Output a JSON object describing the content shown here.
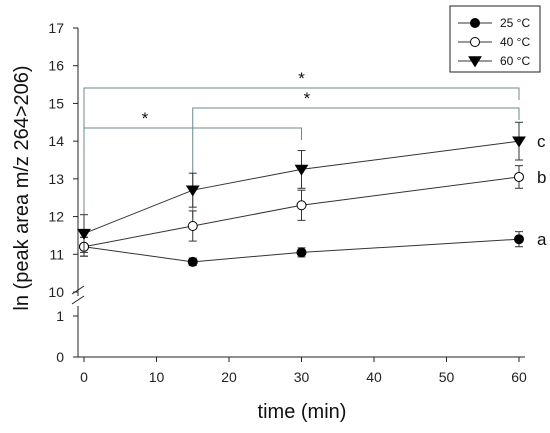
{
  "chart_data": {
    "type": "line",
    "title": "",
    "xlabel": "time (min)",
    "ylabel": "ln (peak area m/z 264>206)",
    "x": [
      0,
      15,
      30,
      60
    ],
    "xlim": [
      0,
      60
    ],
    "xticks": [
      "0",
      "10",
      "20",
      "30",
      "40",
      "50",
      "60"
    ],
    "ylim": [
      10,
      17
    ],
    "yticks": [
      "10",
      "11",
      "12",
      "13",
      "14",
      "15",
      "16",
      "17"
    ],
    "y_break": {
      "lower_ticks": [
        "0",
        "1"
      ]
    },
    "grid": false,
    "legend_position": "top-right",
    "series": [
      {
        "name": "25 °C",
        "marker": "filled-circle",
        "color": "#000000",
        "values": [
          11.2,
          10.8,
          11.05,
          11.4
        ],
        "errors": [
          0.25,
          0.1,
          0.12,
          0.2
        ],
        "end_label": "a"
      },
      {
        "name": "40 °C",
        "marker": "open-circle",
        "color": "#000000",
        "values": [
          11.2,
          11.75,
          12.3,
          13.05
        ],
        "errors": [
          0.25,
          0.4,
          0.4,
          0.3
        ],
        "end_label": "b"
      },
      {
        "name": "60 °C",
        "marker": "filled-triangle-down",
        "color": "#000000",
        "values": [
          11.55,
          12.7,
          13.25,
          14.0
        ],
        "errors": [
          0.5,
          0.45,
          0.5,
          0.5
        ],
        "end_label": "c"
      }
    ],
    "significance_brackets": [
      {
        "label": "*",
        "from_x": 0,
        "to_x": 60
      },
      {
        "label": "*",
        "from_x": 15,
        "to_x": 60
      },
      {
        "label": "*",
        "from_x": 0,
        "to_x": 30
      }
    ]
  }
}
